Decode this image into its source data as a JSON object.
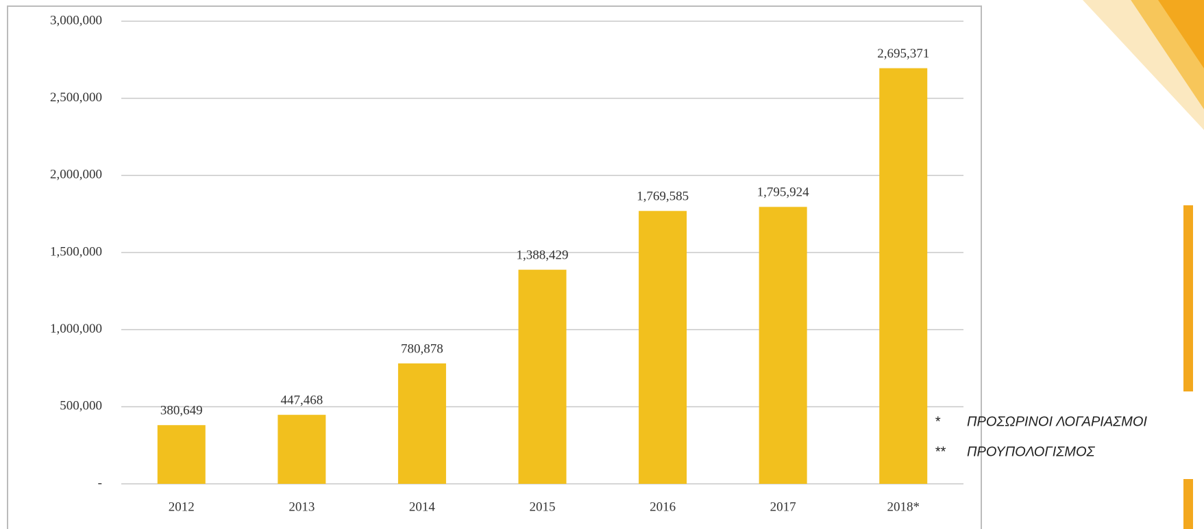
{
  "chart_data": {
    "type": "bar",
    "categories": [
      "2012",
      "2013",
      "2014",
      "2015",
      "2016",
      "2017",
      "2018*"
    ],
    "values": [
      380649,
      447468,
      780878,
      1388429,
      1769585,
      1795924,
      2695371
    ],
    "value_labels": [
      "380,649",
      "447,468",
      "780,878",
      "1,388,429",
      "1,769,585",
      "1,795,924",
      "2,695,371"
    ],
    "color": "#f2c01e",
    "ylim": [
      0,
      3000000
    ],
    "yticks": [
      {
        "value": 0,
        "label": "-"
      },
      {
        "value": 500000,
        "label": "500,000"
      },
      {
        "value": 1000000,
        "label": "1,000,000"
      },
      {
        "value": 1500000,
        "label": "1,500,000"
      },
      {
        "value": 2000000,
        "label": "2,000,000"
      },
      {
        "value": 2500000,
        "label": "2,500,000"
      },
      {
        "value": 3000000,
        "label": "3,000,000"
      }
    ],
    "grid": true,
    "annotations": [
      {
        "marker": "*",
        "text": "ΠΡΟΣΩΡΙΝΟΙ ΛΟΓΑΡΙΑΣΜΟΙ"
      },
      {
        "marker": "**",
        "text": "ΠΡΟΥΠΟΛΟΓΙΣΜΟΣ"
      }
    ]
  }
}
